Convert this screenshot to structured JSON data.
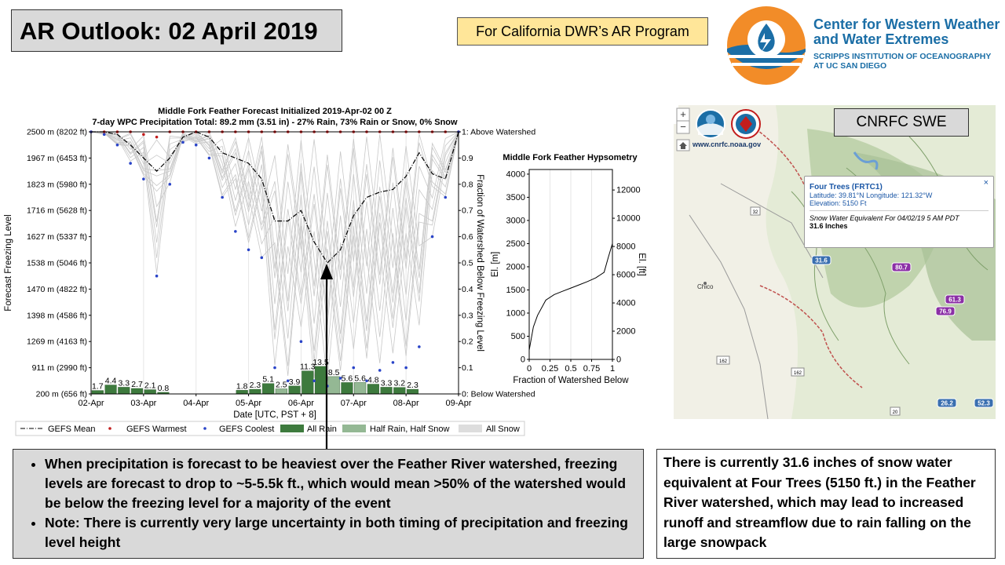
{
  "header": {
    "title": "AR Outlook: 02 April 2019",
    "program": "For California DWR’s AR Program",
    "org_line1": "Center for Western Weather",
    "org_line2": "and Water Extremes",
    "org_line3": "SCRIPPS INSTITUTION OF OCEANOGRAPHY",
    "org_line4": "AT UC SAN DIEGO"
  },
  "chart_data": [
    {
      "type": "bar",
      "title": "Middle Fork Feather Forecast Initialized 2019-Apr-02 00 Z",
      "subtitle": "7-day WPC Precipitation Total: 89.2 mm (3.51 in) - 27% Rain, 73% Rain or Snow, 0% Snow",
      "xlabel": "Date [UTC, PST + 8]",
      "ylabel": "Forecast Freezing Level",
      "y2label": "Fraction of Watershed Below Freezing Level",
      "x_ticks": [
        "02-Apr",
        "03-Apr",
        "04-Apr",
        "05-Apr",
        "06-Apr",
        "07-Apr",
        "08-Apr",
        "09-Apr"
      ],
      "y_ticks": [
        "200 m (656 ft)",
        "911 m (2990 ft)",
        "1269 m (4163 ft)",
        "1398 m (4586 ft)",
        "1470 m (4822 ft)",
        "1538 m (5046 ft)",
        "1627 m (5337 ft)",
        "1716 m (5628 ft)",
        "1823 m (5980 ft)",
        "1967 m (6453 ft)",
        "2500 m (8202 ft)"
      ],
      "y2_ticks": [
        "0: Below Watershed",
        "0.1",
        "0.2",
        "0.3",
        "0.4",
        "0.5",
        "0.6",
        "0.7",
        "0.8",
        "0.9",
        "1: Above Watershed"
      ],
      "ylim_fraction": [
        0,
        1
      ],
      "precip_bars": {
        "x_hours": [
          0,
          6,
          12,
          18,
          24,
          30,
          36,
          42,
          48,
          54,
          60,
          66,
          72,
          78,
          84,
          90,
          96,
          102,
          108,
          114,
          120,
          126,
          132,
          138,
          144,
          150,
          156,
          162
        ],
        "values": [
          1.7,
          4.4,
          3.3,
          2.7,
          2.1,
          0.8,
          0,
          0,
          0,
          0,
          0,
          1.8,
          2.3,
          5.1,
          2.5,
          3.9,
          11.3,
          13.5,
          8.5,
          5.6,
          5.6,
          4.8,
          3.3,
          3.2,
          2.3,
          0,
          0,
          0
        ],
        "labels": [
          "1.7",
          "4.4",
          "3.3",
          "2.7",
          "2.1",
          "0.8",
          "",
          "",
          "",
          "",
          "",
          "1.8",
          "2.3",
          "5.1",
          "2.5",
          "3.9",
          "11.3",
          "13.5",
          "8.5",
          "5.6",
          "5.6",
          "4.8",
          "3.3",
          "3.2",
          "2.3",
          "",
          "",
          ""
        ],
        "category": [
          "rain",
          "rain",
          "rain",
          "rain",
          "rain",
          "rain",
          "",
          "",
          "",
          "",
          "",
          "rain",
          "rain",
          "rain",
          "mixed",
          "rain",
          "rain",
          "rain",
          "mixed",
          "rain",
          "mixed",
          "rain",
          "rain",
          "rain",
          "rain",
          "",
          "",
          ""
        ]
      },
      "gefs_mean": {
        "x_hours": [
          0,
          6,
          12,
          18,
          24,
          30,
          36,
          42,
          48,
          54,
          60,
          66,
          72,
          78,
          84,
          90,
          96,
          102,
          108,
          114,
          120,
          126,
          132,
          138,
          144,
          150,
          156,
          162,
          168
        ],
        "fraction": [
          1.0,
          1.0,
          0.99,
          0.95,
          0.9,
          0.85,
          0.9,
          0.98,
          1.0,
          0.98,
          0.92,
          0.9,
          0.88,
          0.82,
          0.66,
          0.66,
          0.7,
          0.58,
          0.5,
          0.55,
          0.68,
          0.75,
          0.77,
          0.78,
          0.83,
          0.92,
          0.84,
          0.82,
          1.0
        ]
      },
      "gefs_warmest_fraction": [
        1,
        1,
        1,
        1,
        0.99,
        0.98,
        1,
        1,
        1,
        1,
        1,
        1,
        1,
        1,
        1,
        1,
        1,
        1,
        1,
        1,
        1,
        1,
        1,
        1,
        1,
        1,
        1,
        1,
        1
      ],
      "gefs_coolest_fraction": [
        1,
        0.99,
        0.95,
        0.88,
        0.82,
        0.45,
        0.8,
        0.96,
        0.95,
        0.9,
        0.75,
        0.62,
        0.55,
        0.52,
        0.1,
        0.05,
        0.2,
        0.05,
        0.03,
        0.06,
        0.1,
        0.05,
        0.09,
        0.12,
        0.1,
        0.18,
        0.6,
        0.75,
        1
      ],
      "legend": [
        "GEFS Mean",
        "GEFS Warmest",
        "GEFS Coolest",
        "All Rain",
        "Half Rain, Half Snow",
        "All Snow"
      ],
      "legend_position": "bottom",
      "colors": {
        "mean": "#000000",
        "warmest": "#c21d1d",
        "coolest": "#2a44c8",
        "all_rain": "#3d7a3d",
        "mixed": "#94b894",
        "all_snow": "#dddddd",
        "members": "#c8c8c8"
      }
    },
    {
      "type": "line",
      "title": "Middle Fork Feather Hypsometry",
      "xlabel": "Fraction of Watershed Below",
      "ylabel": "El. [m]",
      "y2label": "El. [ft]",
      "xlim": [
        0,
        1
      ],
      "ylim": [
        0,
        4100
      ],
      "x_ticks": [
        "0",
        "0.25",
        "0.5",
        "0.75",
        "1"
      ],
      "y_ticks": [
        "0",
        "500",
        "1000",
        "1500",
        "2000",
        "2500",
        "3000",
        "3500",
        "4000"
      ],
      "y2_ticks": [
        "0",
        "2000",
        "4000",
        "6000",
        "8000",
        "10000",
        "12000"
      ],
      "x": [
        0,
        0.05,
        0.1,
        0.2,
        0.3,
        0.4,
        0.5,
        0.6,
        0.7,
        0.8,
        0.9,
        0.95,
        1.0
      ],
      "y": [
        200,
        700,
        950,
        1280,
        1400,
        1470,
        1540,
        1610,
        1680,
        1760,
        1880,
        2200,
        2500
      ]
    }
  ],
  "map": {
    "label": "CNRFC SWE",
    "url": "www.cnrfc.noaa.gov",
    "town": "Chico",
    "popup_title": "Four Trees (FRTC1)",
    "popup_coords": "Latitude: 39.81°N    Longitude: 121.32°W",
    "popup_elev": "Elevation: 5150 Ft",
    "popup_caption": "Snow Water Equivalent For 04/02/19 5 AM PDT",
    "popup_value": "31.6 Inches",
    "popup_close": "×",
    "station_values": [
      "31.6",
      "80.7",
      "61.3",
      "76.9",
      "26.2",
      "52.3"
    ],
    "road_shields": [
      "32",
      "162",
      "162",
      "20"
    ],
    "zoom_in": "+",
    "zoom_out": "−"
  },
  "notes": {
    "bullet1": "When precipitation is forecast to be heaviest over the Feather River watershed, freezing levels are forecast to drop to ~5-5.5k ft., which would mean >50% of the watershed would be below the freezing level for a majority of the event",
    "bullet2": "Note: There is currently very large uncertainty in both timing of precipitation and freezing level height",
    "swe_text": "There is currently 31.6 inches of snow water equivalent at Four Trees (5150 ft.) in the Feather River watershed, which may lead to increased runoff and streamflow due to rain falling on the large snowpack"
  }
}
